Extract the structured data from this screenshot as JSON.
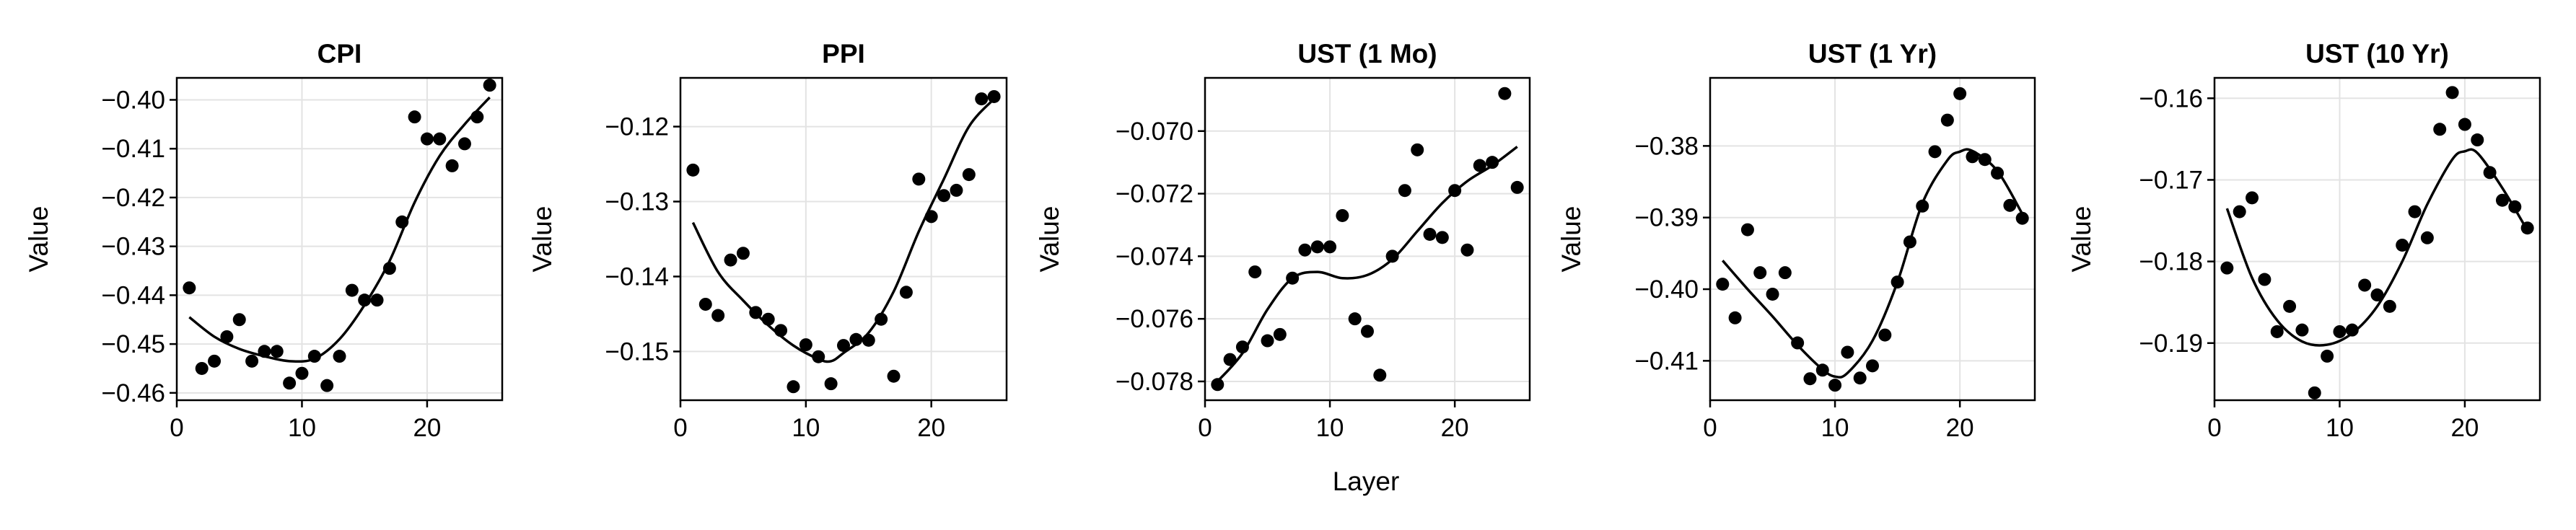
{
  "figure": {
    "xlabel": "Layer"
  },
  "chart_data": [
    {
      "type": "scatter",
      "title": "CPI",
      "ylabel": "Value",
      "xlim": [
        0,
        26
      ],
      "ylim": [
        -0.4615,
        -0.3955
      ],
      "xticks": [
        0,
        10,
        20
      ],
      "xtick_labels": [
        "0",
        "10",
        "20"
      ],
      "yticks": [
        -0.46,
        -0.45,
        -0.44,
        -0.43,
        -0.42,
        -0.41,
        -0.4
      ],
      "ytick_labels": [
        "−0.46",
        "−0.45",
        "−0.44",
        "−0.43",
        "−0.42",
        "−0.41",
        "−0.40"
      ],
      "grid": true,
      "series": [
        {
          "kind": "points",
          "x": [
            1,
            2,
            3,
            4,
            5,
            6,
            7,
            8,
            9,
            10,
            11,
            12,
            13,
            14,
            15,
            16,
            17,
            18,
            19,
            20,
            21,
            22,
            23,
            24,
            25
          ],
          "y": [
            -0.4385,
            -0.455,
            -0.4535,
            -0.4485,
            -0.445,
            -0.4535,
            -0.4515,
            -0.4515,
            -0.458,
            -0.456,
            -0.4525,
            -0.4585,
            -0.4525,
            -0.439,
            -0.441,
            -0.441,
            -0.4345,
            -0.425,
            -0.4035,
            -0.408,
            -0.408,
            -0.4135,
            -0.409,
            -0.4035,
            -0.397
          ]
        },
        {
          "kind": "line",
          "x": [
            1,
            3,
            5,
            7,
            9,
            11,
            13,
            15,
            17,
            19,
            21,
            23,
            25
          ],
          "y": [
            -0.4445,
            -0.4485,
            -0.451,
            -0.4525,
            -0.4535,
            -0.453,
            -0.449,
            -0.442,
            -0.433,
            -0.421,
            -0.4115,
            -0.405,
            -0.3995
          ]
        }
      ]
    },
    {
      "type": "scatter",
      "title": "PPI",
      "ylabel": "Value",
      "xlim": [
        0,
        26
      ],
      "ylim": [
        -0.1565,
        -0.1135
      ],
      "xticks": [
        0,
        10,
        20
      ],
      "xtick_labels": [
        "0",
        "10",
        "20"
      ],
      "yticks": [
        -0.15,
        -0.14,
        -0.13,
        -0.12
      ],
      "ytick_labels": [
        "−0.15",
        "−0.14",
        "−0.13",
        "−0.12"
      ],
      "grid": true,
      "series": [
        {
          "kind": "points",
          "x": [
            1,
            2,
            3,
            4,
            5,
            6,
            7,
            8,
            9,
            10,
            11,
            12,
            13,
            14,
            15,
            16,
            17,
            18,
            19,
            20,
            21,
            22,
            23,
            24,
            25
          ],
          "y": [
            -0.1258,
            -0.1437,
            -0.1452,
            -0.1378,
            -0.1369,
            -0.1448,
            -0.1457,
            -0.1472,
            -0.1547,
            -0.1491,
            -0.1507,
            -0.1543,
            -0.1492,
            -0.1484,
            -0.1485,
            -0.1457,
            -0.1533,
            -0.1421,
            -0.127,
            -0.132,
            -0.1292,
            -0.1285,
            -0.1264,
            -0.1163,
            -0.116
          ]
        },
        {
          "kind": "line",
          "x": [
            1,
            3,
            5,
            7,
            9,
            11,
            12,
            13,
            15,
            17,
            19,
            21,
            23,
            25
          ],
          "y": [
            -0.1328,
            -0.1394,
            -0.1432,
            -0.1465,
            -0.1492,
            -0.151,
            -0.1513,
            -0.1502,
            -0.1475,
            -0.142,
            -0.134,
            -0.127,
            -0.12,
            -0.1163
          ]
        }
      ]
    },
    {
      "type": "scatter",
      "title": "UST (1 Mo)",
      "ylabel": "Value",
      "xlim": [
        0,
        26
      ],
      "ylim": [
        -0.0786,
        -0.0683
      ],
      "xticks": [
        0,
        10,
        20
      ],
      "xtick_labels": [
        "0",
        "10",
        "20"
      ],
      "yticks": [
        -0.078,
        -0.076,
        -0.074,
        -0.072,
        -0.07
      ],
      "ytick_labels": [
        "−0.078",
        "−0.076",
        "−0.074",
        "−0.072",
        "−0.070"
      ],
      "grid": true,
      "series": [
        {
          "kind": "points",
          "x": [
            1,
            2,
            3,
            4,
            5,
            6,
            7,
            8,
            9,
            10,
            11,
            12,
            13,
            14,
            15,
            16,
            17,
            18,
            19,
            20,
            21,
            22,
            23,
            24,
            25
          ],
          "y": [
            -0.0781,
            -0.0773,
            -0.0769,
            -0.0745,
            -0.0767,
            -0.0765,
            -0.0747,
            -0.0738,
            -0.0737,
            -0.0737,
            -0.0727,
            -0.076,
            -0.0764,
            -0.0778,
            -0.074,
            -0.0719,
            -0.0706,
            -0.0733,
            -0.0734,
            -0.0719,
            -0.0738,
            -0.0711,
            -0.071,
            -0.0688,
            -0.0718
          ]
        },
        {
          "kind": "line",
          "x": [
            1,
            3,
            5,
            7,
            9,
            11,
            13,
            15,
            17,
            19,
            21,
            23,
            25
          ],
          "y": [
            -0.078,
            -0.0771,
            -0.0757,
            -0.0747,
            -0.0745,
            -0.0747,
            -0.0746,
            -0.0741,
            -0.0732,
            -0.0723,
            -0.0716,
            -0.0711,
            -0.0705
          ]
        }
      ]
    },
    {
      "type": "scatter",
      "title": "UST (1 Yr)",
      "ylabel": "Value",
      "xlim": [
        0,
        26
      ],
      "ylim": [
        -0.4155,
        -0.3705
      ],
      "xticks": [
        0,
        10,
        20
      ],
      "xtick_labels": [
        "0",
        "10",
        "20"
      ],
      "yticks": [
        -0.41,
        -0.4,
        -0.39,
        -0.38
      ],
      "ytick_labels": [
        "−0.41",
        "−0.40",
        "−0.39",
        "−0.38"
      ],
      "grid": true,
      "series": [
        {
          "kind": "points",
          "x": [
            1,
            2,
            3,
            4,
            5,
            6,
            7,
            8,
            9,
            10,
            11,
            12,
            13,
            14,
            15,
            16,
            17,
            18,
            19,
            20,
            21,
            22,
            23,
            24,
            25
          ],
          "y": [
            -0.3993,
            -0.404,
            -0.3917,
            -0.3977,
            -0.4007,
            -0.3977,
            -0.4075,
            -0.4125,
            -0.4113,
            -0.4134,
            -0.4088,
            -0.4124,
            -0.4107,
            -0.4064,
            -0.399,
            -0.3934,
            -0.3884,
            -0.3808,
            -0.3764,
            -0.3727,
            -0.3815,
            -0.3819,
            -0.3838,
            -0.3883,
            -0.3901
          ]
        },
        {
          "kind": "line",
          "x": [
            1,
            3,
            5,
            7,
            9,
            10,
            11,
            13,
            15,
            17,
            19,
            20,
            21,
            23,
            25
          ],
          "y": [
            -0.396,
            -0.4,
            -0.4038,
            -0.4078,
            -0.4112,
            -0.4122,
            -0.4117,
            -0.4072,
            -0.399,
            -0.388,
            -0.382,
            -0.3808,
            -0.3807,
            -0.3835,
            -0.3895
          ]
        }
      ]
    },
    {
      "type": "scatter",
      "title": "UST (10 Yr)",
      "ylabel": "Value",
      "xlim": [
        0,
        26
      ],
      "ylim": [
        -0.197,
        -0.1575
      ],
      "xticks": [
        0,
        10,
        20
      ],
      "xtick_labels": [
        "0",
        "10",
        "20"
      ],
      "yticks": [
        -0.19,
        -0.18,
        -0.17,
        -0.16
      ],
      "ytick_labels": [
        "−0.19",
        "−0.18",
        "−0.17",
        "−0.16"
      ],
      "grid": true,
      "series": [
        {
          "kind": "points",
          "x": [
            1,
            2,
            3,
            4,
            5,
            6,
            7,
            8,
            9,
            10,
            11,
            12,
            13,
            14,
            15,
            16,
            17,
            18,
            19,
            20,
            21,
            22,
            23,
            24,
            25
          ],
          "y": [
            -0.1808,
            -0.1739,
            -0.1722,
            -0.1822,
            -0.1886,
            -0.1855,
            -0.1884,
            -0.1961,
            -0.1916,
            -0.1886,
            -0.1884,
            -0.1829,
            -0.1841,
            -0.1855,
            -0.178,
            -0.1739,
            -0.1771,
            -0.1638,
            -0.1593,
            -0.1632,
            -0.1651,
            -0.1691,
            -0.1725,
            -0.1733,
            -0.1759
          ]
        },
        {
          "kind": "line",
          "x": [
            1,
            3,
            5,
            7,
            9,
            11,
            13,
            15,
            17,
            19,
            20,
            21,
            23,
            25
          ],
          "y": [
            -0.1735,
            -0.182,
            -0.1872,
            -0.1898,
            -0.1902,
            -0.1888,
            -0.1855,
            -0.18,
            -0.173,
            -0.1675,
            -0.1665,
            -0.1667,
            -0.171,
            -0.1762
          ]
        }
      ]
    }
  ]
}
